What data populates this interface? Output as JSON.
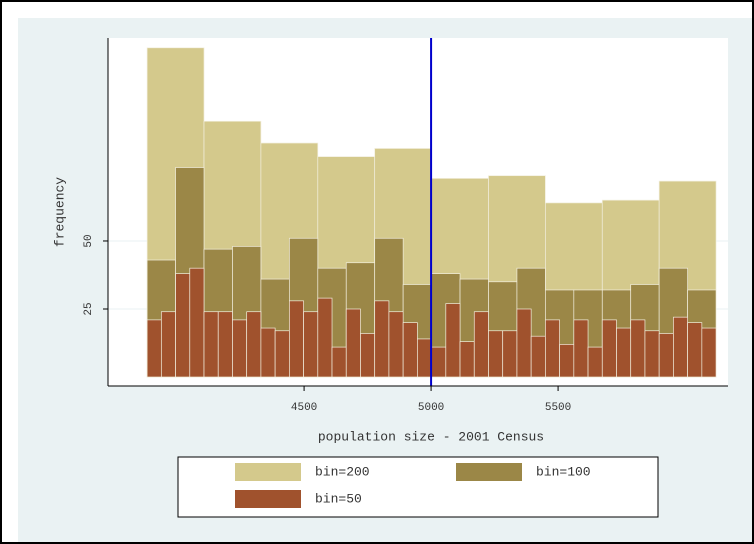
{
  "chart_data": {
    "type": "histogram",
    "xlabel": "population size - 2001 Census",
    "ylabel": "frequency",
    "xlim": [
      3728,
      6169
    ],
    "ylim": [
      -3.3,
      124.6
    ],
    "xticks": [
      4500,
      5000,
      5500
    ],
    "yticks": [
      25,
      50
    ],
    "xline": 5000,
    "xline_color": "#0000cc",
    "legend": "bottom",
    "series": [
      {
        "name": "bin=200",
        "color": "#d4c98c",
        "bins": [
          3882,
          4106,
          4330,
          4554,
          4778,
          5002,
          5226,
          5450,
          5674,
          5898,
          6122
        ],
        "values": [
          121,
          94,
          86,
          81,
          84,
          73,
          74,
          64,
          65,
          72
        ]
      },
      {
        "name": "bin=100",
        "color": "#9b8747",
        "bins": [
          3882,
          3994,
          4106,
          4218,
          4330,
          4442,
          4554,
          4666,
          4778,
          4890,
          5002,
          5114,
          5226,
          5338,
          5450,
          5562,
          5674,
          5786,
          5898,
          6010,
          6122
        ],
        "values": [
          43,
          77,
          47,
          48,
          36,
          51,
          40,
          42,
          51,
          34,
          38,
          36,
          35,
          40,
          32,
          32,
          32,
          34,
          40,
          32
        ]
      },
      {
        "name": "bin=50",
        "color": "#a0522d",
        "bins": [
          3882,
          3938,
          3994,
          4050,
          4106,
          4162,
          4218,
          4274,
          4330,
          4386,
          4442,
          4498,
          4554,
          4610,
          4666,
          4722,
          4778,
          4834,
          4890,
          4946,
          5002,
          5058,
          5114,
          5170,
          5226,
          5282,
          5338,
          5394,
          5450,
          5506,
          5562,
          5618,
          5674,
          5730,
          5786,
          5842,
          5898,
          5954,
          6010,
          6066,
          6122
        ],
        "values": [
          21,
          24,
          38,
          40,
          24,
          24,
          21,
          24,
          18,
          17,
          28,
          24,
          29,
          11,
          25,
          16,
          28,
          24,
          20,
          14,
          11,
          27,
          13,
          24,
          17,
          17,
          25,
          15,
          21,
          12,
          21,
          11,
          21,
          18,
          21,
          17,
          16,
          22,
          20,
          18
        ]
      }
    ]
  }
}
